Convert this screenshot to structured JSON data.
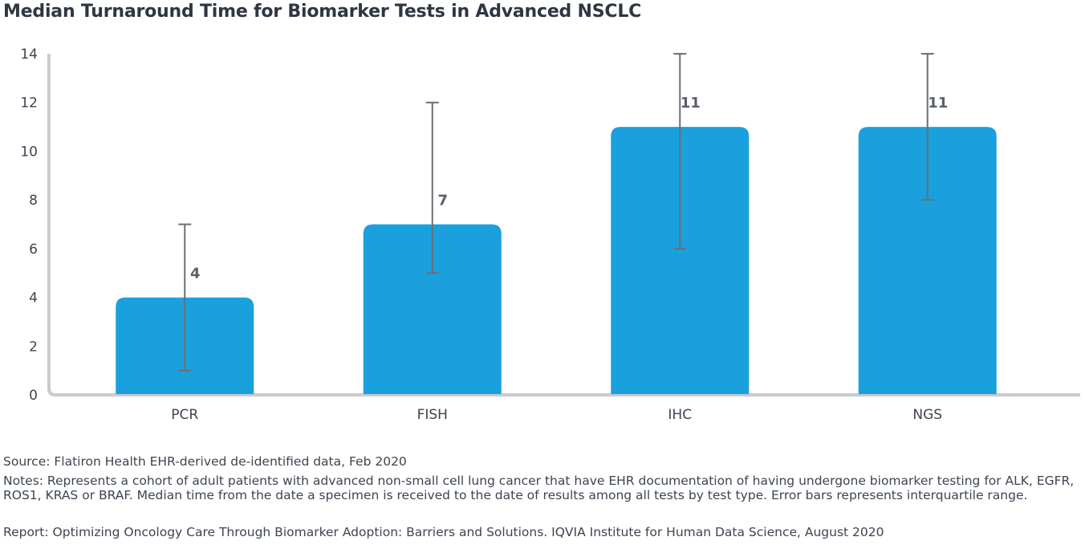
{
  "title": "Median Turnaround Time for Biomarker Tests in Advanced NSCLC",
  "footer": {
    "source": "Source: Flatiron Health EHR-derived de-identified data, Feb 2020",
    "notes": "Notes: Represents a cohort of adult patients with advanced non-small cell lung cancer that have EHR documentation of having undergone biomarker testing for ALK, EGFR, ROS1, KRAS or BRAF. Median time from the date a specimen is received to the date of results among all tests by test type. Error bars represents interquartile range.",
    "report": "Report: Optimizing Oncology Care Through Biomarker Adoption: Barriers and Solutions. IQVIA Institute for Human Data Science, August 2020"
  },
  "chart_data": {
    "type": "bar",
    "title": "Median Turnaround Time for Biomarker Tests in Advanced NSCLC",
    "xlabel": "",
    "ylabel": "",
    "categories": [
      "PCR",
      "FISH",
      "IHC",
      "NGS"
    ],
    "values": [
      4,
      7,
      11,
      11
    ],
    "error_low": [
      1,
      5,
      6,
      8
    ],
    "error_high": [
      7,
      12,
      14,
      14
    ],
    "data_labels": [
      "4",
      "7",
      "11",
      "11"
    ],
    "ylim": [
      0,
      14
    ],
    "yticks": [
      0,
      2,
      4,
      6,
      8,
      10,
      12,
      14
    ],
    "grid": false,
    "legend": "none",
    "colors": {
      "bar": "#1aa0dc",
      "error_bar": "#6b6f76",
      "axis": "#c9cbce",
      "text": "#3d4451"
    }
  }
}
